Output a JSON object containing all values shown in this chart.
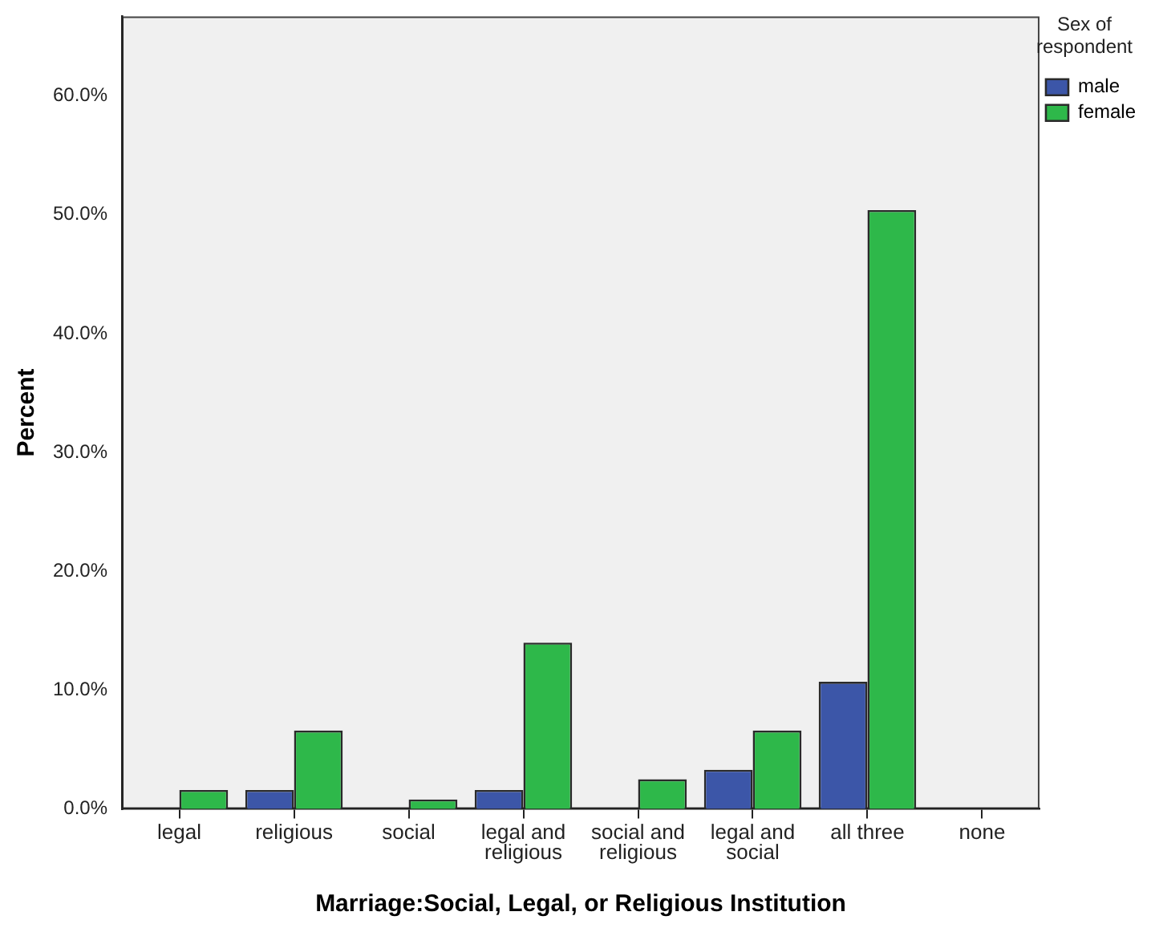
{
  "chart_data": {
    "type": "bar",
    "xlabel": "Marriage:Social, Legal, or Religious Institution",
    "ylabel": "Percent",
    "legend_title": "Sex of respondent",
    "legend": "top right",
    "grid": false,
    "categories": [
      "legal",
      "religious",
      "social",
      "legal and religious",
      "social and religious",
      "legal and social",
      "all three",
      "none"
    ],
    "series": [
      {
        "name": "male",
        "color": "#3c56a8",
        "values": [
          0,
          1.6,
          0,
          1.6,
          0,
          3.3,
          10.7,
          0
        ]
      },
      {
        "name": "female",
        "color": "#2eb84a",
        "values": [
          1.6,
          6.6,
          0.8,
          14.0,
          2.5,
          6.6,
          50.4,
          0
        ]
      }
    ],
    "ylim": [
      0,
      66.7
    ],
    "yticks": [
      {
        "value": 0,
        "label": "0.0%"
      },
      {
        "value": 10,
        "label": "10.0%"
      },
      {
        "value": 20,
        "label": "20.0%"
      },
      {
        "value": 30,
        "label": "30.0%"
      },
      {
        "value": 40,
        "label": "40.0%"
      },
      {
        "value": 50,
        "label": "50.0%"
      },
      {
        "value": 60,
        "label": "60.0%"
      }
    ]
  }
}
